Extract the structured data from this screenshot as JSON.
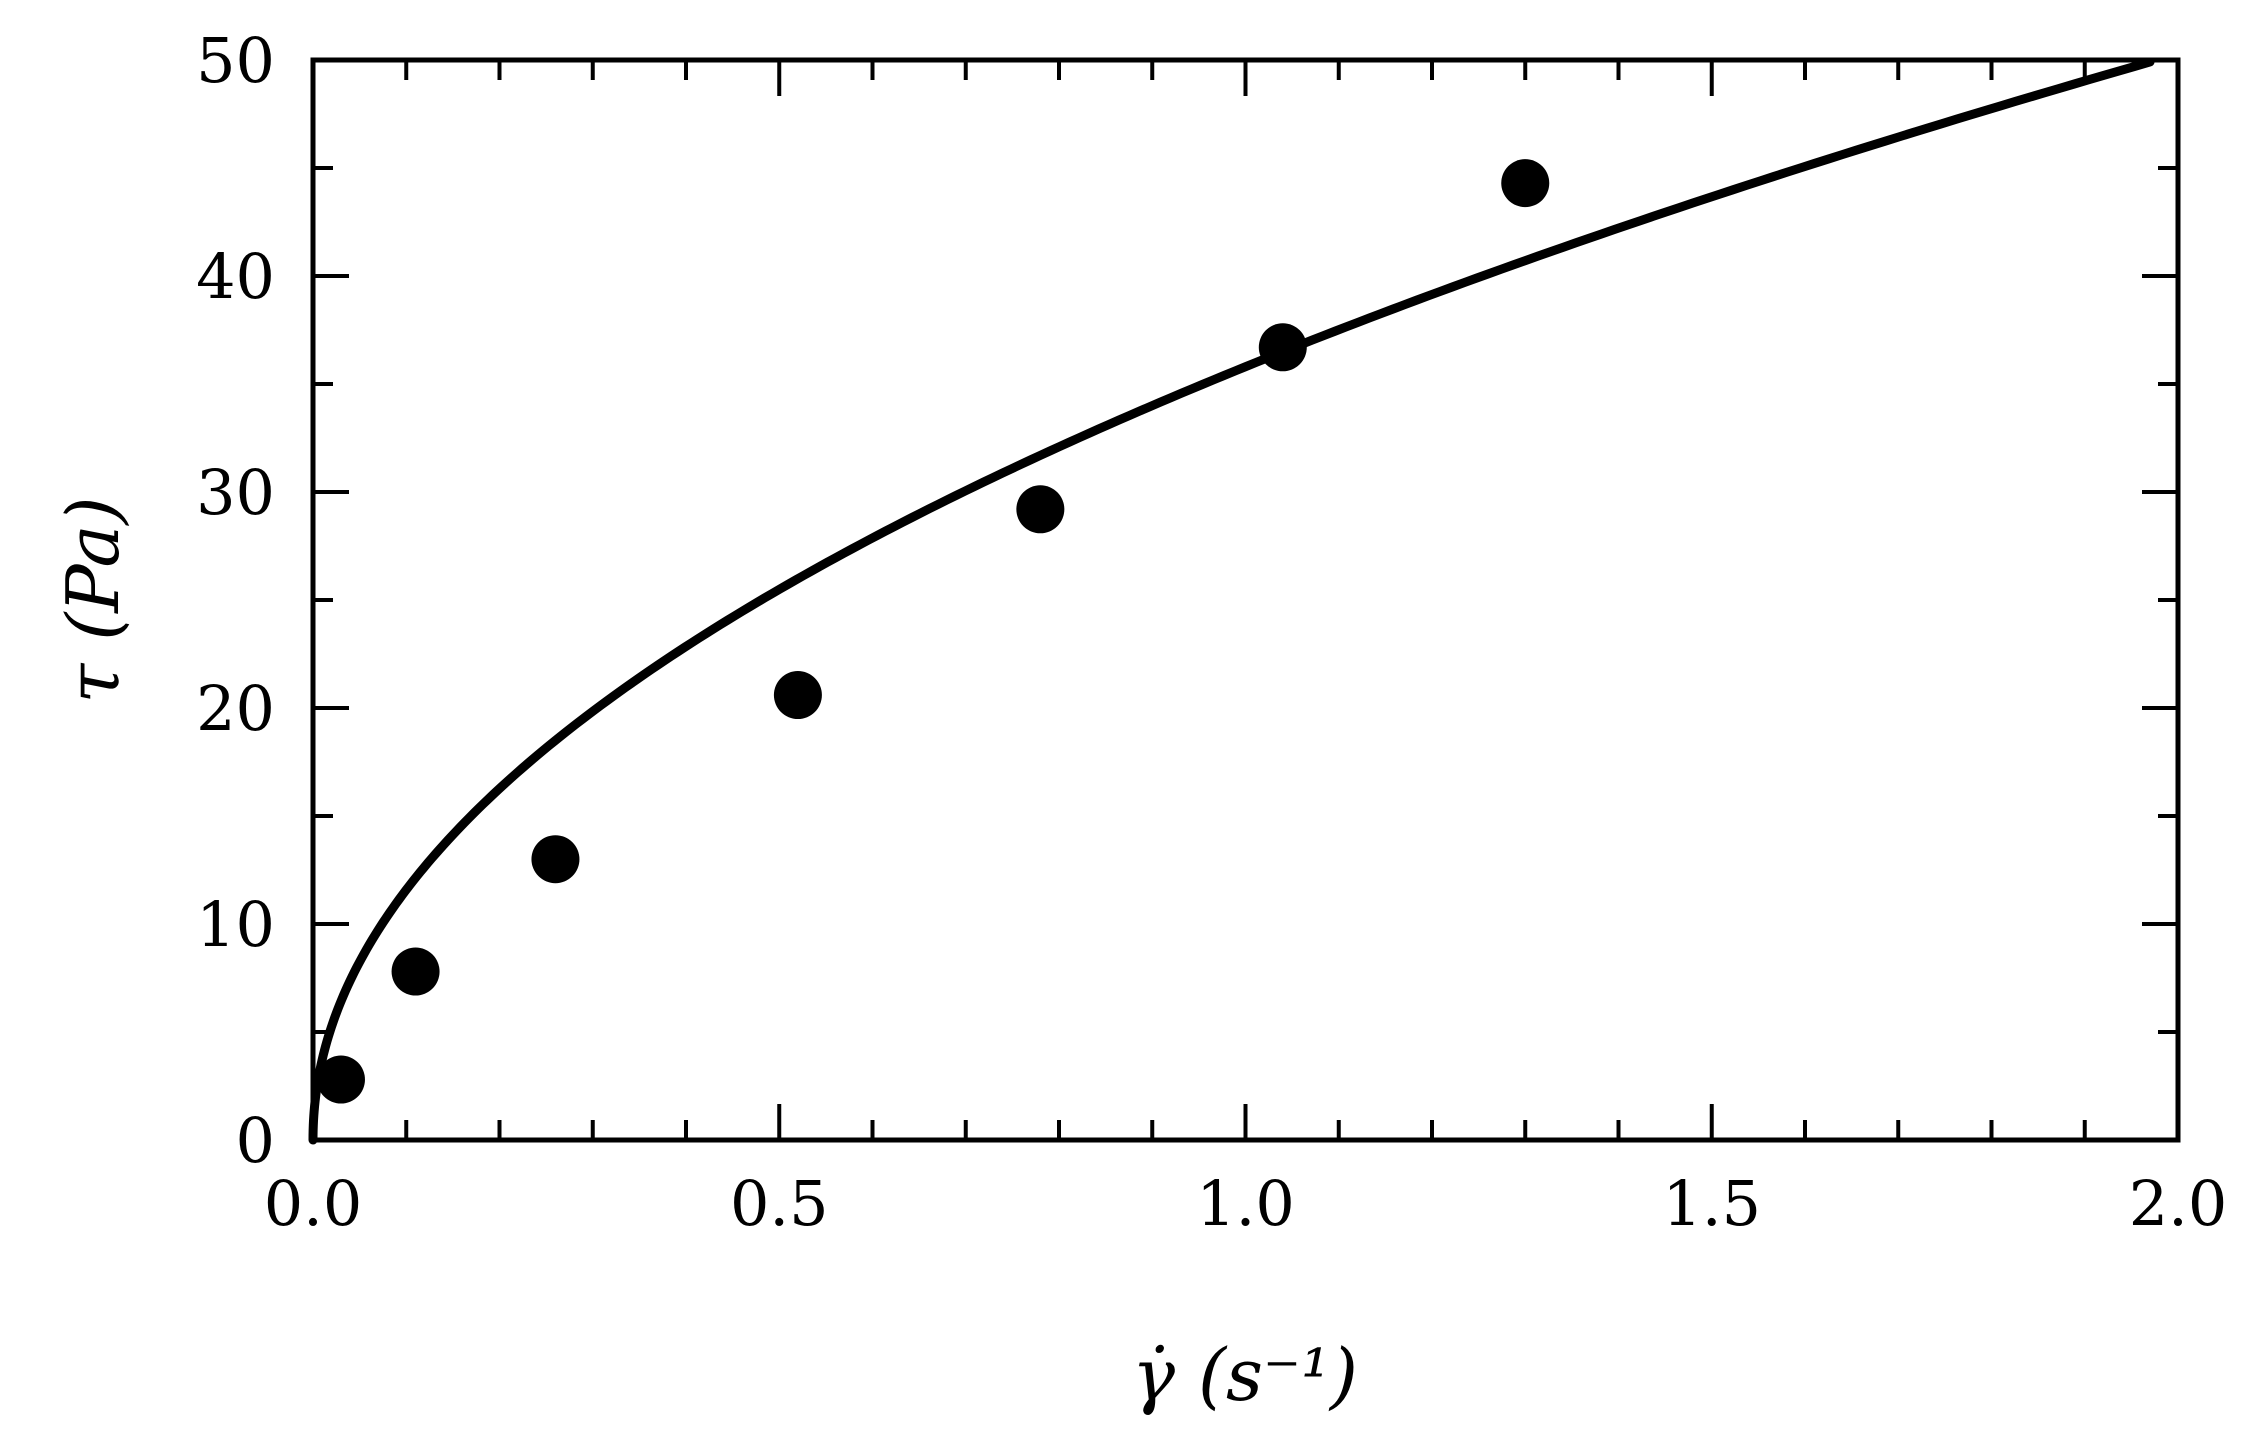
{
  "chart_data": {
    "type": "scatter",
    "xlabel": "γ̇ (s⁻¹)",
    "ylabel": "τ (Pa)",
    "xlim": [
      0.0,
      2.0
    ],
    "ylim": [
      0,
      50
    ],
    "x_ticks": [
      "0.0",
      "0.5",
      "1.0",
      "1.5",
      "2.0"
    ],
    "x_tick_values": [
      0.0,
      0.5,
      1.0,
      1.5,
      2.0
    ],
    "x_minor_step": 0.1,
    "y_ticks": [
      "0",
      "10",
      "20",
      "30",
      "40",
      "50"
    ],
    "y_tick_values": [
      0,
      10,
      20,
      30,
      40,
      50
    ],
    "y_minor_step": 5,
    "grid": false,
    "legend": "none",
    "series": [
      {
        "kind": "points",
        "color": "#000000",
        "x": [
          0.03,
          0.11,
          0.26,
          0.52,
          0.78,
          1.04,
          1.3
        ],
        "y": [
          2.8,
          7.8,
          13.0,
          20.6,
          29.2,
          36.7,
          44.3
        ]
      },
      {
        "kind": "fit-line",
        "color": "#000000",
        "model": "power-law",
        "k": 35.8,
        "n": 0.49,
        "x_range": [
          0.0,
          1.97
        ]
      }
    ]
  }
}
